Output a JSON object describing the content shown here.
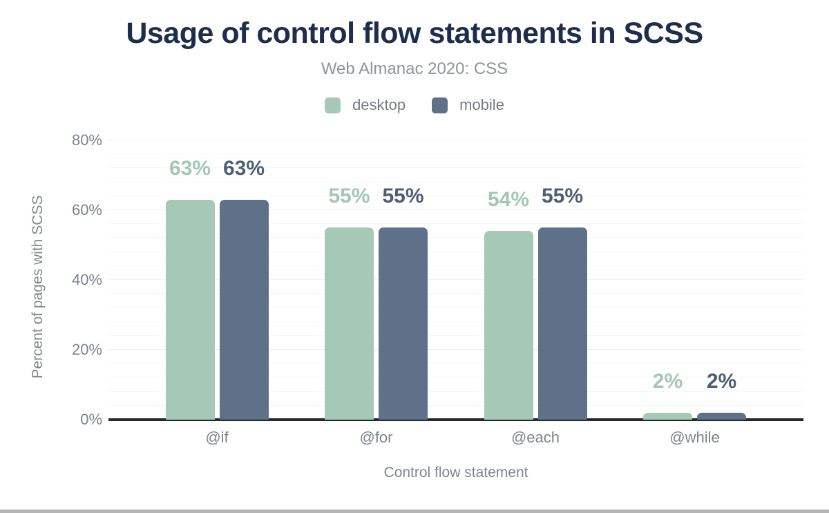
{
  "chart_data": {
    "type": "bar",
    "title": "Usage of control flow statements in SCSS",
    "subtitle": "Web Almanac 2020: CSS",
    "categories": [
      "@if",
      "@for",
      "@each",
      "@while"
    ],
    "series": [
      {
        "name": "desktop",
        "color": "#a5c9b6",
        "label_color": "#a2c7b4",
        "values": [
          63,
          55,
          54,
          2
        ],
        "value_labels": [
          "63%",
          "55%",
          "54%",
          "2%"
        ]
      },
      {
        "name": "mobile",
        "color": "#5f7189",
        "label_color": "#4b5e76",
        "values": [
          63,
          55,
          55,
          2
        ],
        "value_labels": [
          "63%",
          "55%",
          "55%",
          "2%"
        ]
      }
    ],
    "xlabel": "Control flow statement",
    "ylabel": "Percent of pages with SCSS",
    "ylim": [
      0,
      80
    ],
    "yticks": [
      0,
      20,
      40,
      60,
      80
    ],
    "ytick_labels": [
      "0%",
      "20%",
      "40%",
      "60%",
      "80%"
    ],
    "minor_grid_step": 4,
    "major_grid_step": 20,
    "grid": "horizontal",
    "legend_position": "top"
  }
}
